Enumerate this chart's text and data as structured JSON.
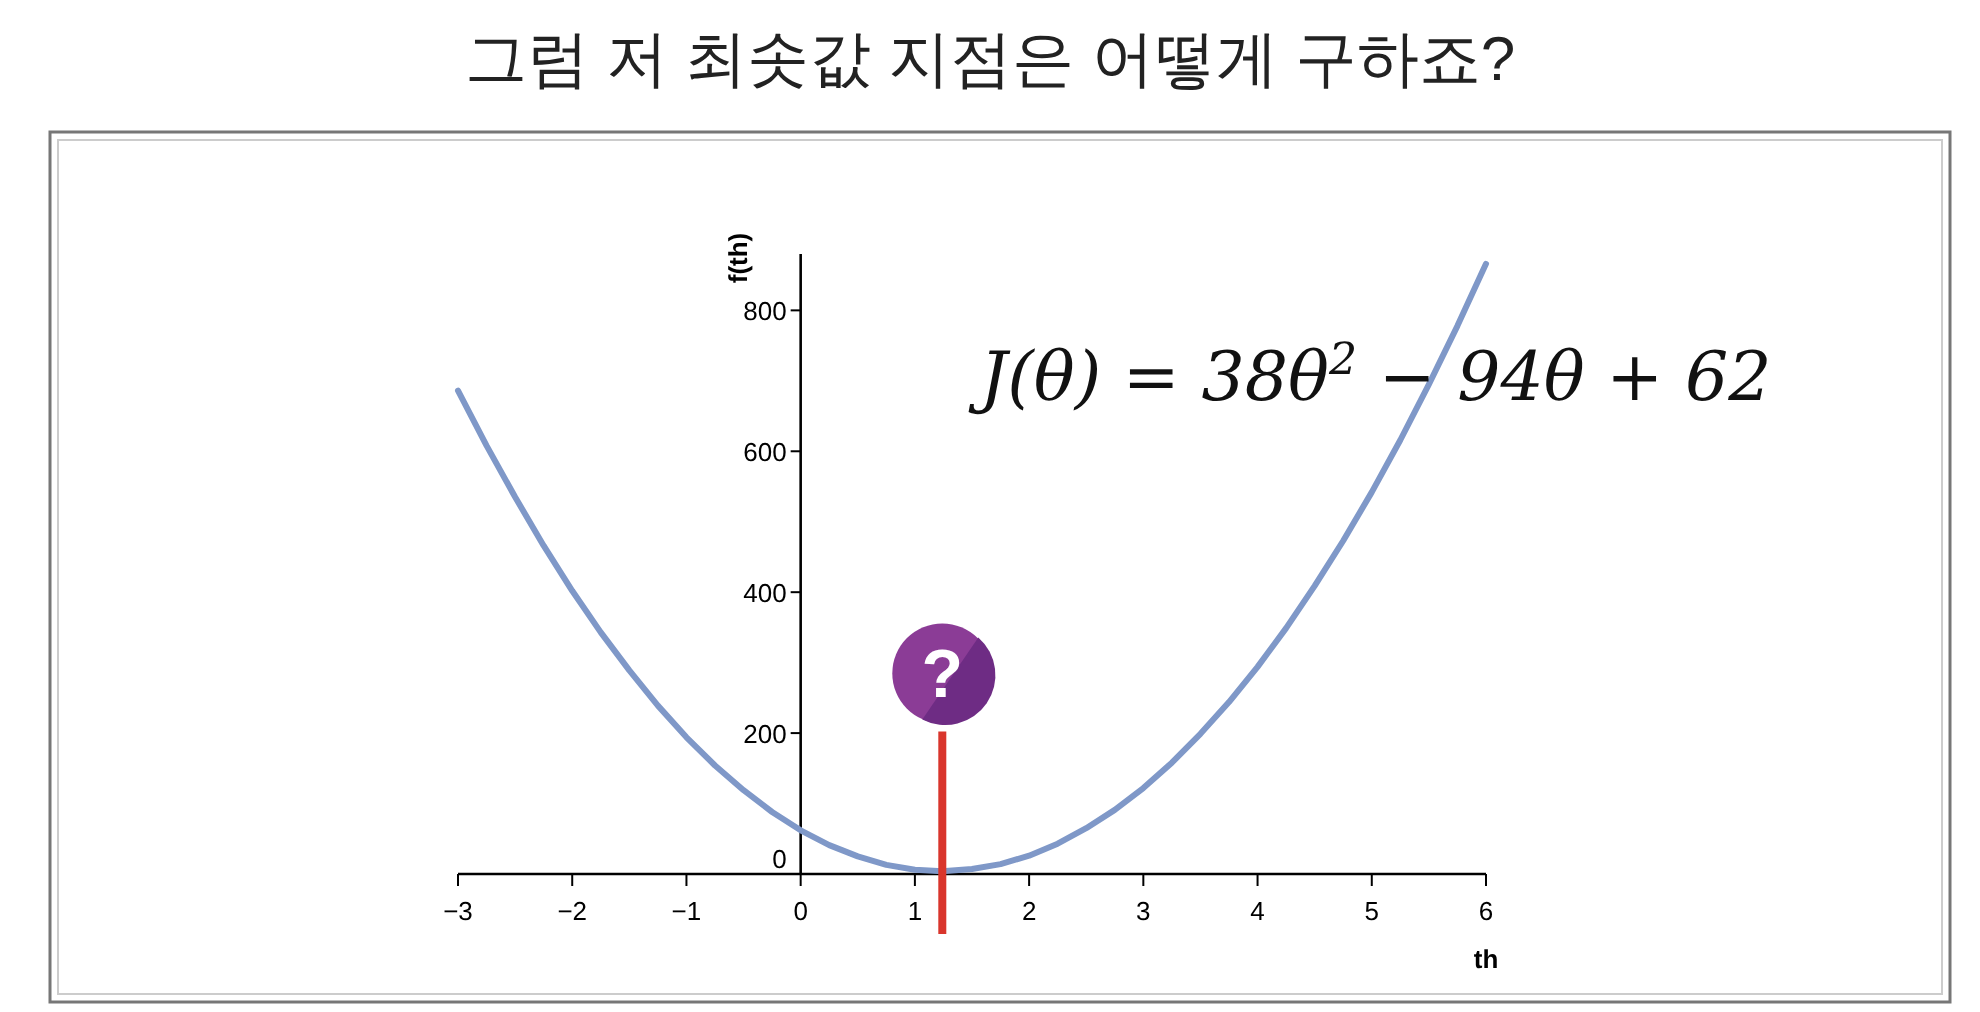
{
  "chart_data": {
    "type": "line",
    "title": "그럼 저 최솟값 지점은 어떻게 구하죠?",
    "xlabel": "th",
    "ylabel": "f(th)",
    "annotations": [
      "J(θ) = 38θ$^{2}$ − 94θ + 62"
    ],
    "x": [
      -3,
      -2.75,
      -2.5,
      -2.25,
      -2,
      -1.75,
      -1.5,
      -1.25,
      -1,
      -0.75,
      -0.5,
      -0.25,
      0,
      0.25,
      0.5,
      0.75,
      1,
      1.24,
      1.5,
      1.75,
      2,
      2.25,
      2.5,
      2.75,
      3,
      3.25,
      3.5,
      3.75,
      4,
      4.25,
      4.5,
      4.75,
      5,
      5.25,
      5.5,
      5.75,
      6
    ],
    "series": [
      {
        "color": "#7f98c8",
        "values": [
          686,
          608,
          535,
          466,
          402,
          343,
          289,
          239,
          194,
          154,
          119,
          88,
          62,
          41,
          25,
          13,
          6,
          4,
          7,
          14,
          26,
          43,
          65,
          91,
          122,
          158,
          199,
          244,
          294,
          349,
          409,
          473,
          542,
          616,
          695,
          778,
          866
        ]
      }
    ],
    "xlim": [
      -3,
      6
    ],
    "ylim": [
      0,
      880
    ],
    "xticks": [
      -3,
      -2,
      -1,
      0,
      1,
      2,
      3,
      4,
      5,
      6
    ],
    "yticks": [
      0,
      200,
      400,
      600,
      800
    ],
    "ref_lines": [
      {
        "axis": "x",
        "value": 1.24,
        "label": "?",
        "color": "#d9352c"
      }
    ],
    "grid": false,
    "marker": "none"
  }
}
